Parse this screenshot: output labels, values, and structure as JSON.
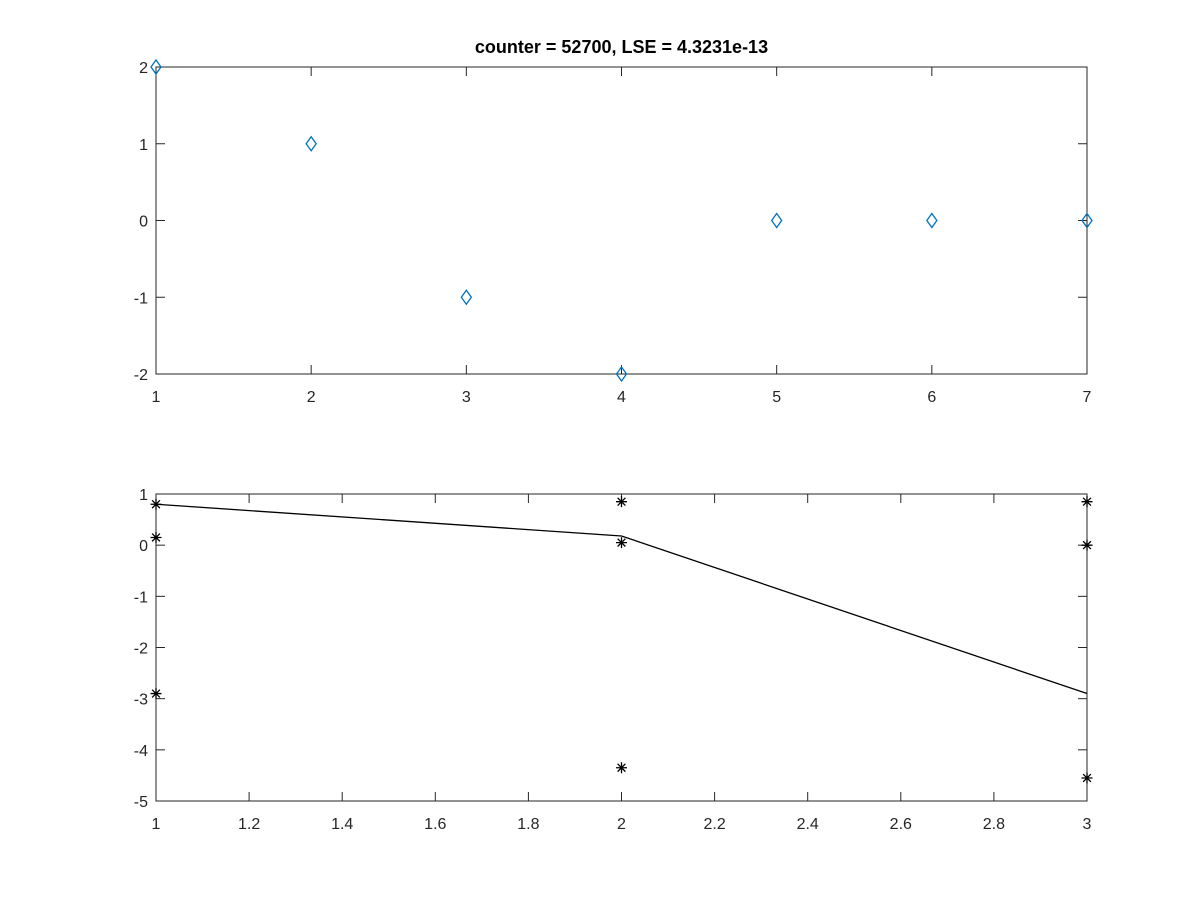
{
  "chart_data": [
    {
      "type": "scatter",
      "title": "counter = 52700, LSE = 4.3231e-13",
      "xlim": [
        1,
        7
      ],
      "ylim": [
        -2,
        2
      ],
      "xticks": [
        1,
        2,
        3,
        4,
        5,
        6,
        7
      ],
      "yticks": [
        -2,
        -1,
        0,
        1,
        2
      ],
      "xtick_labels": [
        "1",
        "2",
        "3",
        "4",
        "5",
        "6",
        "7"
      ],
      "ytick_labels": [
        "-2",
        "-1",
        "0",
        "1",
        "2"
      ],
      "grid": false,
      "marker": "diamond",
      "color": "#0072bd",
      "series": [
        {
          "x": [
            1,
            2,
            3,
            4,
            5,
            6,
            7
          ],
          "y": [
            2,
            1,
            -1,
            -2,
            0,
            0,
            0
          ]
        }
      ]
    },
    {
      "type": "line",
      "title": "",
      "xlim": [
        1,
        3
      ],
      "ylim": [
        -5,
        1
      ],
      "xticks": [
        1,
        1.2,
        1.4,
        1.6,
        1.8,
        2,
        2.2,
        2.4,
        2.6,
        2.8,
        3
      ],
      "yticks": [
        -5,
        -4,
        -3,
        -2,
        -1,
        0,
        1
      ],
      "xtick_labels": [
        "1",
        "1.2",
        "1.4",
        "1.6",
        "1.8",
        "2",
        "2.2",
        "2.4",
        "2.6",
        "2.8",
        "3"
      ],
      "ytick_labels": [
        "-5",
        "-4",
        "-3",
        "-2",
        "-1",
        "0",
        "1"
      ],
      "grid": false,
      "color": "#000000",
      "series": [
        {
          "style": "line",
          "x": [
            1,
            2,
            3
          ],
          "y": [
            0.8,
            0.18,
            -2.9
          ]
        },
        {
          "style": "star",
          "x": [
            1,
            1,
            1,
            2,
            2,
            2,
            3,
            3,
            3
          ],
          "y": [
            0.8,
            0.15,
            -2.9,
            0.85,
            0.05,
            -4.35,
            0.85,
            0.0,
            -4.55
          ]
        }
      ]
    }
  ]
}
